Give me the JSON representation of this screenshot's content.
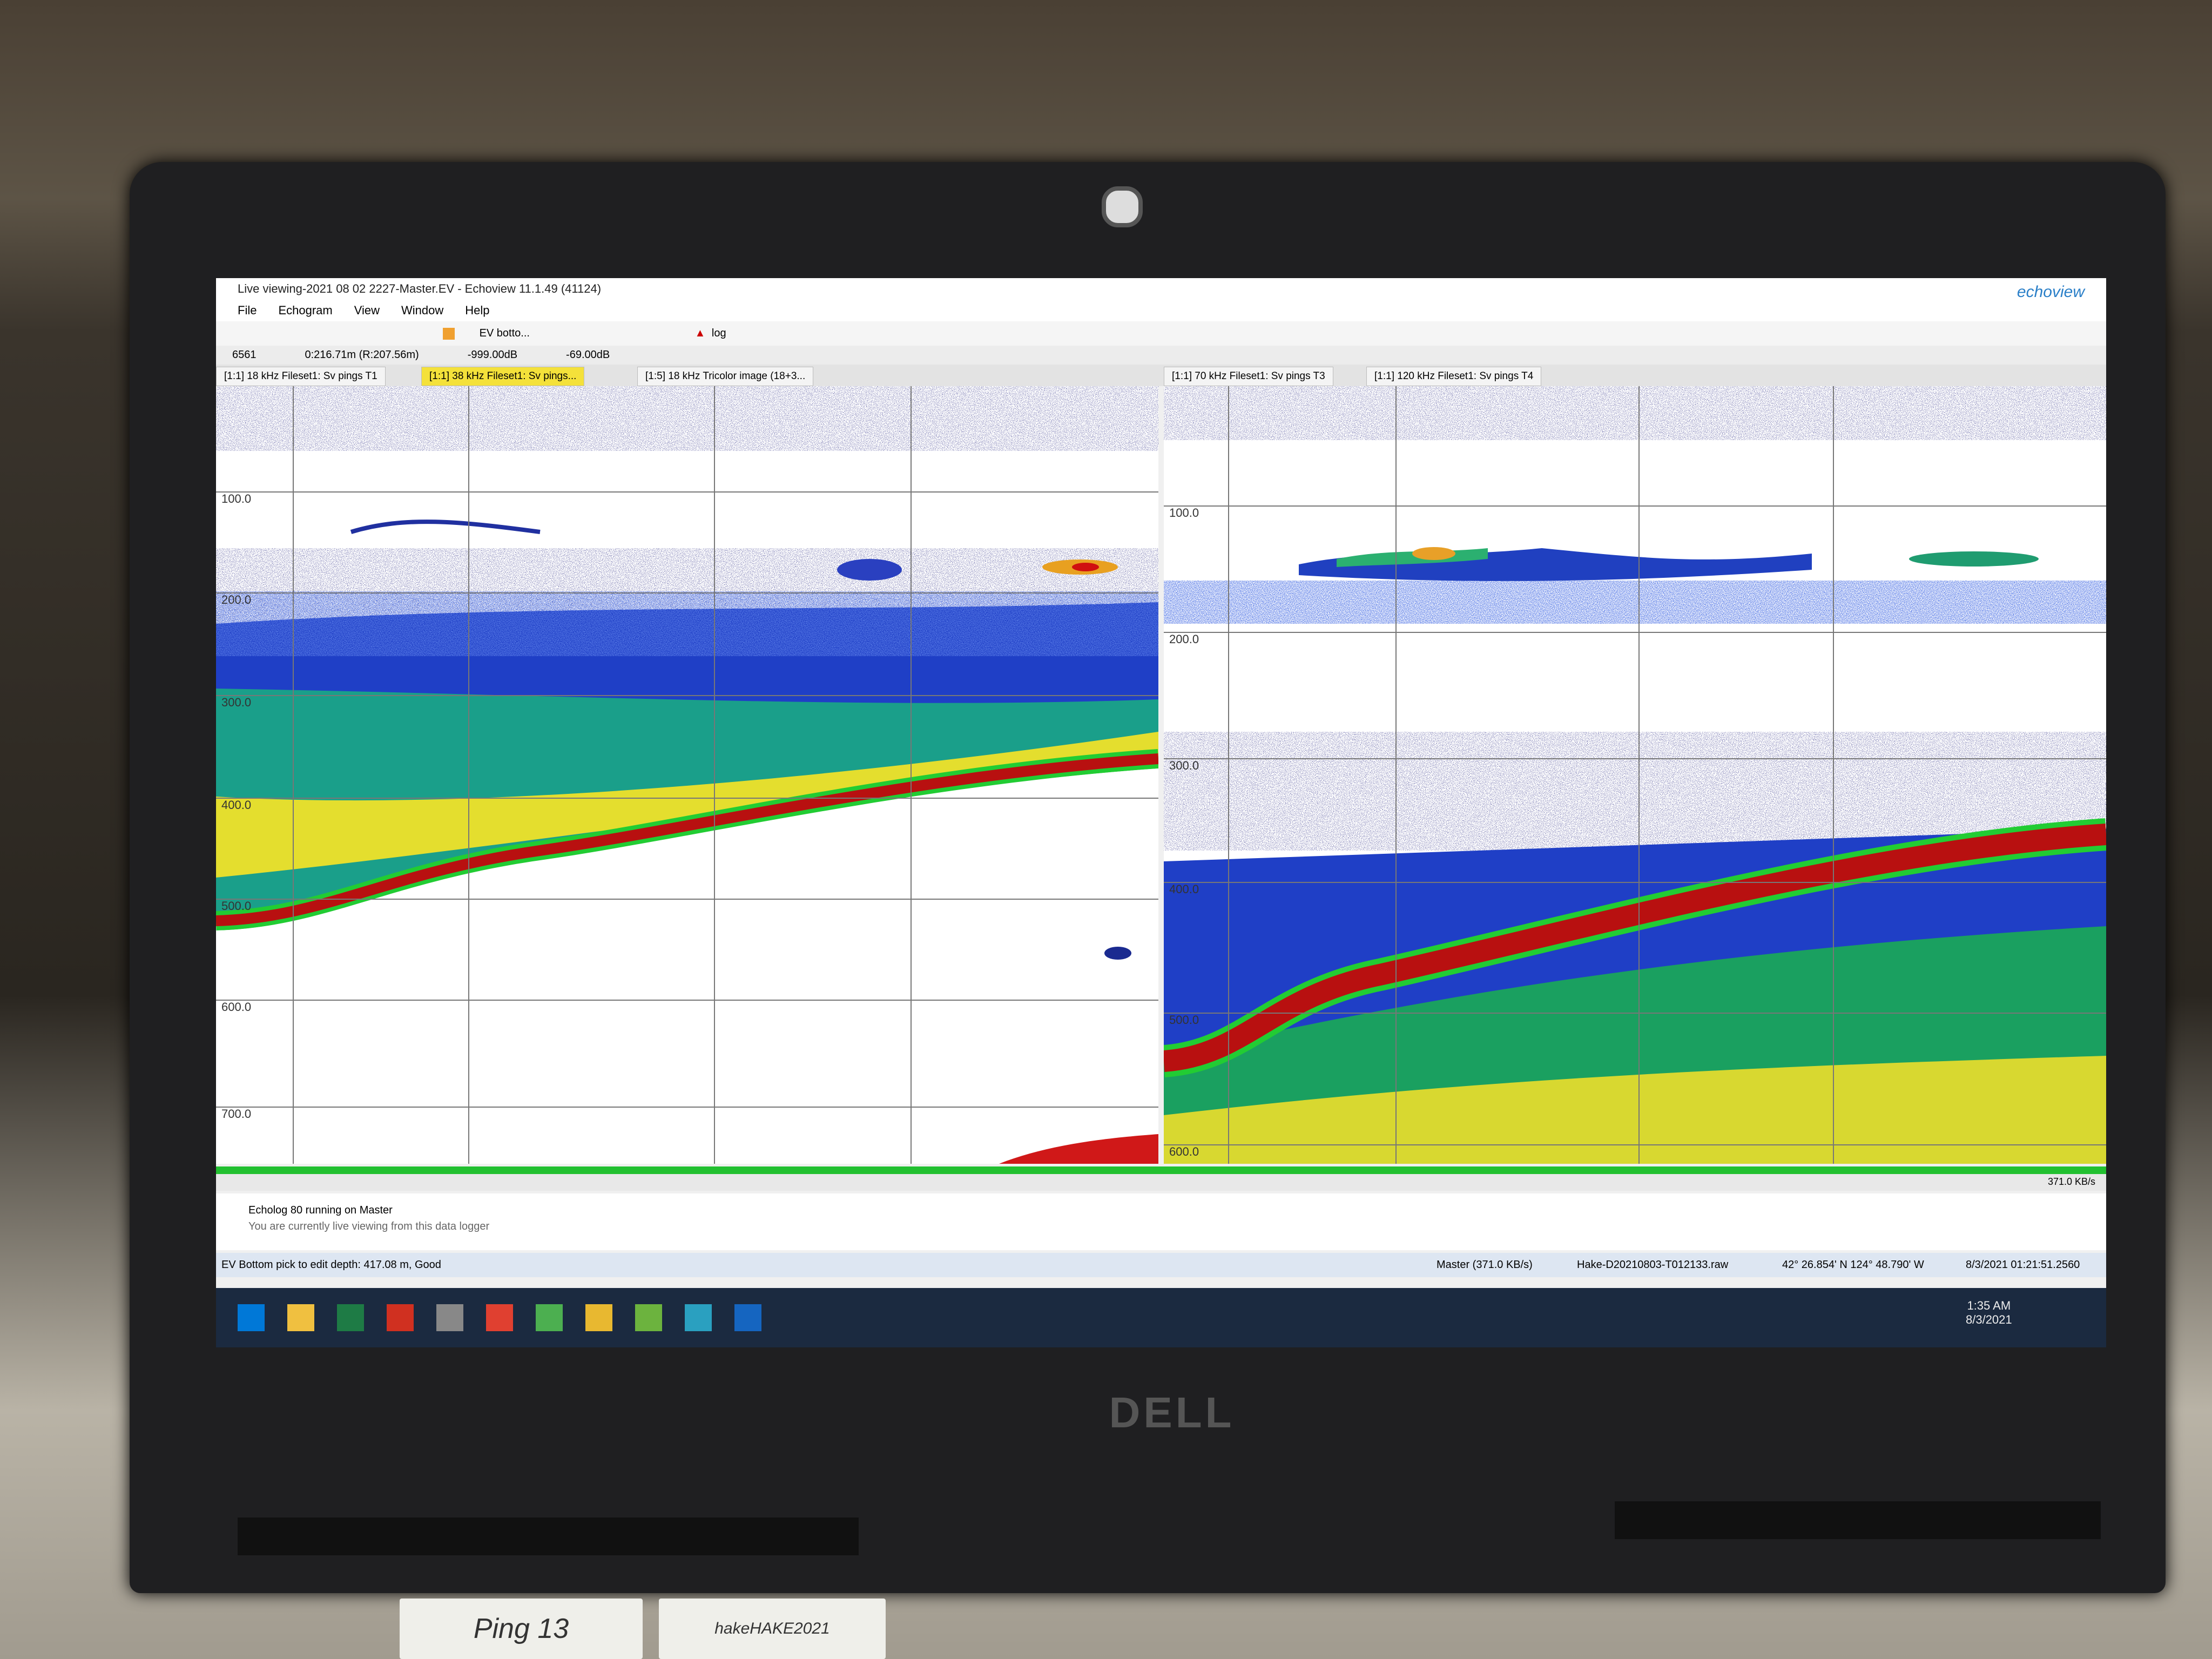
{
  "window": {
    "title": "Live viewing-2021 08 02 2227-Master.EV - Echoview 11.1.49 (41124)",
    "logo": "echoview"
  },
  "menu": [
    "File",
    "Echogram",
    "View",
    "Window",
    "Help"
  ],
  "toolbar": {
    "bottom_tool": "EV botto...",
    "log": "log"
  },
  "status_row": [
    "6561",
    "0:216.71m (R:207.56m)",
    "-999.00dB",
    "-69.00dB"
  ],
  "tabs": {
    "left": [
      "[1:1] 18 kHz Fileset1: Sv pings T1",
      "[1:1] 38 kHz Fileset1: Sv pings...",
      "[1:5] 18 kHz Tricolor image (18+3..."
    ],
    "right": [
      "[1:1] 70 kHz Fileset1: Sv pings T3",
      "[1:1] 120 kHz Fileset1: Sv pings T4"
    ]
  },
  "echograms": {
    "left": {
      "depth_labels": [
        "100.0",
        "200.0",
        "300.0",
        "400.0",
        "500.0",
        "600.0",
        "700.0"
      ]
    },
    "right": {
      "depth_labels": [
        "100.0",
        "200.0",
        "300.0",
        "400.0",
        "500.0",
        "600.0"
      ]
    }
  },
  "rate": "371.0 KB/s",
  "messages": {
    "title": "Echolog 80 running on Master",
    "detail": "You are currently live viewing from this data logger"
  },
  "status_bar": {
    "hint": "EV Bottom pick to edit depth: 417.08 m, Good",
    "master": "Master (371.0 KB/s)",
    "file": "Hake-D20210803-T012133.raw",
    "position": "42° 26.854' N 124° 48.790' W",
    "timestamp": "8/3/2021 01:21:51.2560"
  },
  "taskbar": {
    "time": "1:35 AM",
    "date": "8/3/2021"
  },
  "laptop": {
    "brand": "DELL"
  },
  "desk_labels": [
    "Ping 13",
    "hakeHAKE2021"
  ]
}
